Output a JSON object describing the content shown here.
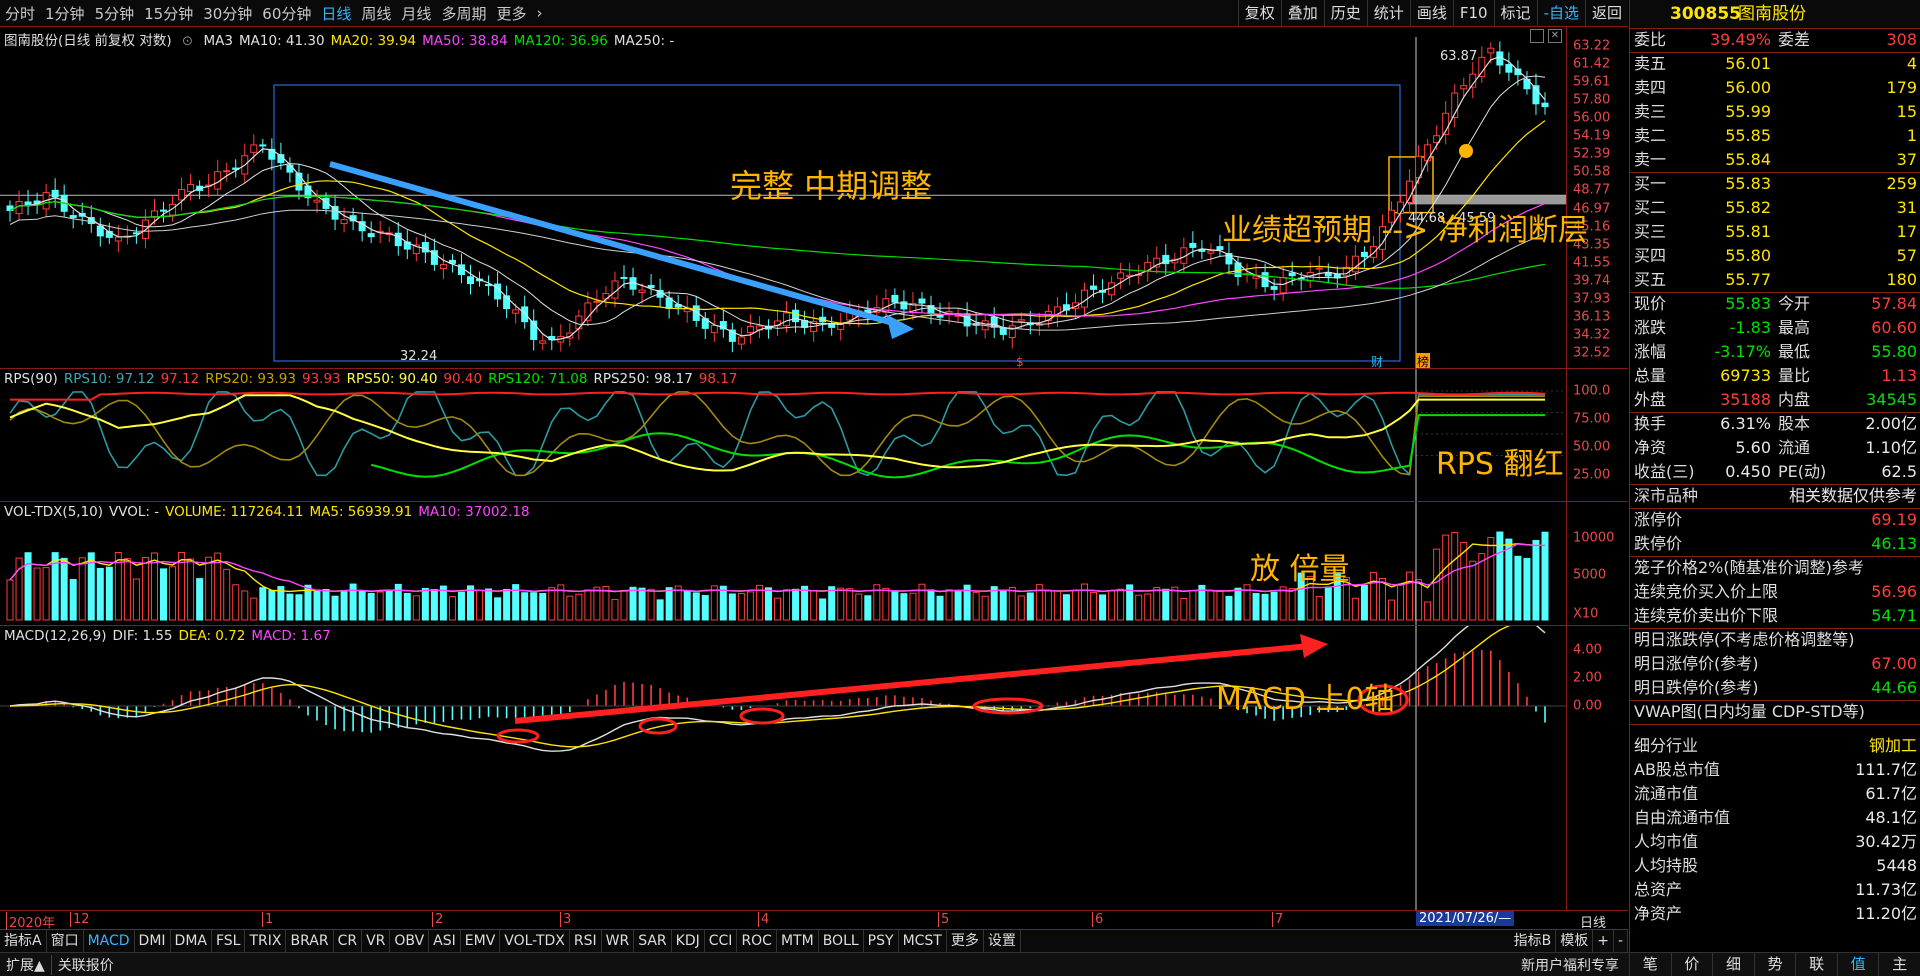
{
  "toolbar": {
    "timeframes": [
      "分时",
      "1分钟",
      "5分钟",
      "15分钟",
      "30分钟",
      "60分钟",
      "日线",
      "周线",
      "月线",
      "多周期",
      "更多"
    ],
    "active_timeframe": "日线",
    "tools": [
      "复权",
      "叠加",
      "历史",
      "统计",
      "画线",
      "F10",
      "标记",
      "-自选",
      "返回"
    ]
  },
  "price_pane": {
    "title": "图南股份(日线 前复权 对数)",
    "ma_labels": [
      {
        "text": "MA3",
        "color": "#e0e0e0"
      },
      {
        "text": "MA10: 41.30",
        "color": "#e0e0e0"
      },
      {
        "text": "MA20: 39.94",
        "color": "#ffe400"
      },
      {
        "text": "MA50: 38.84",
        "color": "#ff44ff"
      },
      {
        "text": "MA120: 36.96",
        "color": "#00e000"
      },
      {
        "text": "MA250: -",
        "color": "#e0e0e0"
      }
    ],
    "ticks": [
      "63.22",
      "61.42",
      "59.61",
      "57.80",
      "56.00",
      "54.19",
      "52.39",
      "50.58",
      "48.77",
      "46.97",
      "45.16",
      "43.35",
      "41.55",
      "39.74",
      "37.93",
      "36.13",
      "34.32",
      "32.52"
    ],
    "low_label": "32.24",
    "high_label": "63.87",
    "gap_label": "44.68 - 45.59",
    "badge_cai": "财",
    "badge_bang": "榜",
    "dollar": "$"
  },
  "rps_pane": {
    "labels": [
      {
        "text": "RPS(90)",
        "color": "#e0e0e0"
      },
      {
        "text": "RPS10: 97.12",
        "color": "#3fa6b0"
      },
      {
        "text": "97.12",
        "color": "#ff3c3c"
      },
      {
        "text": "RPS20: 93.93",
        "color": "#c8a000"
      },
      {
        "text": "93.93",
        "color": "#ff3c3c"
      },
      {
        "text": "RPS50: 90.40",
        "color": "#ffff40"
      },
      {
        "text": "90.40",
        "color": "#ff3c3c"
      },
      {
        "text": "RPS120: 71.08",
        "color": "#00e000"
      },
      {
        "text": "RPS250: 98.17",
        "color": "#e0e0e0"
      },
      {
        "text": "98.17",
        "color": "#ff3c3c"
      }
    ],
    "ticks": [
      "100.0",
      "75.00",
      "50.00",
      "25.00"
    ]
  },
  "vol_pane": {
    "labels": [
      {
        "text": "VOL-TDX(5,10)",
        "color": "#e0e0e0"
      },
      {
        "text": "VVOL: -",
        "color": "#e0e0e0"
      },
      {
        "text": "VOLUME: 117264.11",
        "color": "#ffe400"
      },
      {
        "text": "MA5: 56939.91",
        "color": "#ffe400"
      },
      {
        "text": "MA10: 37002.18",
        "color": "#ff44ff"
      }
    ],
    "ticks": [
      "10000",
      "5000"
    ],
    "unit": "X10"
  },
  "macd_pane": {
    "labels": [
      {
        "text": "MACD(12,26,9)",
        "color": "#e0e0e0"
      },
      {
        "text": "DIF: 1.55",
        "color": "#e0e0e0"
      },
      {
        "text": "DEA: 0.72",
        "color": "#ffe400"
      },
      {
        "text": "MACD: 1.67",
        "color": "#ff44ff"
      }
    ],
    "ticks": [
      "4.00",
      "2.00",
      "0.00"
    ]
  },
  "annotations": {
    "correction": "完整 中期调整",
    "earnings": "业绩超预期 --> 净利润断层",
    "rps_red": "RPS 翻红",
    "volume": "放 倍量",
    "macd": "MACD 上0轴"
  },
  "date_axis": {
    "labels": [
      "2020年",
      "12",
      "1",
      "2",
      "3",
      "4",
      "5",
      "6",
      "7"
    ],
    "cursor_date": "2021/07/26/—",
    "period": "日线",
    "plus": "+",
    "minus": "-"
  },
  "indicator_bar": {
    "items": [
      "指标A",
      "窗口",
      "MACD",
      "DMI",
      "DMA",
      "FSL",
      "TRIX",
      "BRAR",
      "CR",
      "VR",
      "OBV",
      "ASI",
      "EMV",
      "VOL-TDX",
      "RSI",
      "WR",
      "SAR",
      "KDJ",
      "CCI",
      "ROC",
      "MTM",
      "BOLL",
      "PSY",
      "MCST",
      "更多",
      "设置"
    ],
    "active": "MACD",
    "right_items": [
      "指标B",
      "模板"
    ]
  },
  "status_bar": {
    "left": [
      "扩展▲",
      "关联报价"
    ],
    "right": "新用户福利专享"
  },
  "quote": {
    "code": "300855",
    "name": "图南股份",
    "weibi_label": "委比",
    "weibi": "39.49%",
    "weicha_label": "委差",
    "weicha": "308",
    "asks": [
      {
        "label": "卖五",
        "price": "56.01",
        "vol": "4"
      },
      {
        "label": "卖四",
        "price": "56.00",
        "vol": "179"
      },
      {
        "label": "卖三",
        "price": "55.99",
        "vol": "15"
      },
      {
        "label": "卖二",
        "price": "55.85",
        "vol": "1"
      },
      {
        "label": "卖一",
        "price": "55.84",
        "vol": "37"
      }
    ],
    "bids": [
      {
        "label": "买一",
        "price": "55.83",
        "vol": "259"
      },
      {
        "label": "买二",
        "price": "55.82",
        "vol": "31"
      },
      {
        "label": "买三",
        "price": "55.81",
        "vol": "17"
      },
      {
        "label": "买四",
        "price": "55.80",
        "vol": "57"
      },
      {
        "label": "买五",
        "price": "55.77",
        "vol": "180"
      }
    ],
    "stats": [
      {
        "l1": "现价",
        "v1": "55.83",
        "c1": "green",
        "l2": "今开",
        "v2": "57.84",
        "c2": "red"
      },
      {
        "l1": "涨跌",
        "v1": "-1.83",
        "c1": "green",
        "l2": "最高",
        "v2": "60.60",
        "c2": "red"
      },
      {
        "l1": "涨幅",
        "v1": "-3.17%",
        "c1": "green",
        "l2": "最低",
        "v2": "55.80",
        "c2": "green"
      },
      {
        "l1": "总量",
        "v1": "69733",
        "c1": "yel",
        "l2": "量比",
        "v2": "1.13",
        "c2": "red"
      },
      {
        "l1": "外盘",
        "v1": "35188",
        "c1": "red",
        "l2": "内盘",
        "v2": "34545",
        "c2": "green"
      }
    ],
    "stats2": [
      {
        "l1": "换手",
        "v1": "6.31%",
        "l2": "股本",
        "v2": "2.00亿"
      },
      {
        "l1": "净资",
        "v1": "5.60",
        "l2": "流通",
        "v2": "1.10亿"
      },
      {
        "l1": "收益(三)",
        "v1": "0.450",
        "l2": "PE(动)",
        "v2": "62.5"
      }
    ],
    "market_label": "深市品种",
    "market_note": "相关数据仅供参考",
    "limit_up_label": "涨停价",
    "limit_up": "69.19",
    "limit_down_label": "跌停价",
    "limit_down": "46.13",
    "cage_label": "笼子价格2%(随基准价调整)参考",
    "auction_buy_label": "连续竞价买入价上限",
    "auction_buy": "56.96",
    "auction_sell_label": "连续竞价卖出价下限",
    "auction_sell": "54.71",
    "tomorrow_title": "明日涨跌停(不考虑价格调整等)",
    "tomorrow_up_label": "明日涨停价(参考)",
    "tomorrow_up": "67.00",
    "tomorrow_down_label": "明日跌停价(参考)",
    "tomorrow_down": "44.66",
    "vwap_title": "VWAP图(日内均量 CDP-STD等)",
    "industry_label": "细分行业",
    "industry": "钢加工",
    "caps": [
      {
        "l": "AB股总市值",
        "v": "111.7亿"
      },
      {
        "l": "流通市值",
        "v": "61.7亿"
      },
      {
        "l": "自由流通市值",
        "v": "48.1亿"
      },
      {
        "l": "人均市值",
        "v": "30.42万"
      },
      {
        "l": "人均持股",
        "v": "5448"
      },
      {
        "l": "总资产",
        "v": "11.73亿"
      },
      {
        "l": "净资产",
        "v": "11.20亿"
      }
    ],
    "tabs": [
      "笔",
      "价",
      "细",
      "势",
      "联",
      "值",
      "主"
    ],
    "active_tab": "值"
  },
  "chart_data": {
    "type": "candlestick",
    "x_range": [
      "2020-11",
      "2021-07-26"
    ],
    "price_range": [
      32.24,
      63.87
    ],
    "price_scale": "log",
    "close_path": [
      44.5,
      45.2,
      46.0,
      44.8,
      43.5,
      42.6,
      41.5,
      42.8,
      44.0,
      45.5,
      46.8,
      47.2,
      48.5,
      50.0,
      51.5,
      49.0,
      47.0,
      45.0,
      44.2,
      43.0,
      42.5,
      42.0,
      41.2,
      40.5,
      39.6,
      38.8,
      38.0,
      37.0,
      35.5,
      34.0,
      33.2,
      34.5,
      36.0,
      37.5,
      38.2,
      37.6,
      36.8,
      36.0,
      35.2,
      34.4,
      33.8,
      34.2,
      34.8,
      35.2,
      34.9,
      34.6,
      35.0,
      35.6,
      36.1,
      36.5,
      36.2,
      35.8,
      35.4,
      35.0,
      34.6,
      34.4,
      34.7,
      35.1,
      35.8,
      36.6,
      37.4,
      38.0,
      38.8,
      39.5,
      40.0,
      40.6,
      41.2,
      40.4,
      39.0,
      38.2,
      37.8,
      38.4,
      39.0,
      38.6,
      39.2,
      40.5,
      42.6,
      45.8,
      49.5,
      53.0,
      56.8,
      60.5,
      62.8,
      60.5,
      57.8,
      55.8
    ],
    "rps_range": [
      0,
      100
    ],
    "macd_range": [
      -0.8,
      5.0
    ],
    "volume_range": [
      0,
      13000
    ]
  }
}
